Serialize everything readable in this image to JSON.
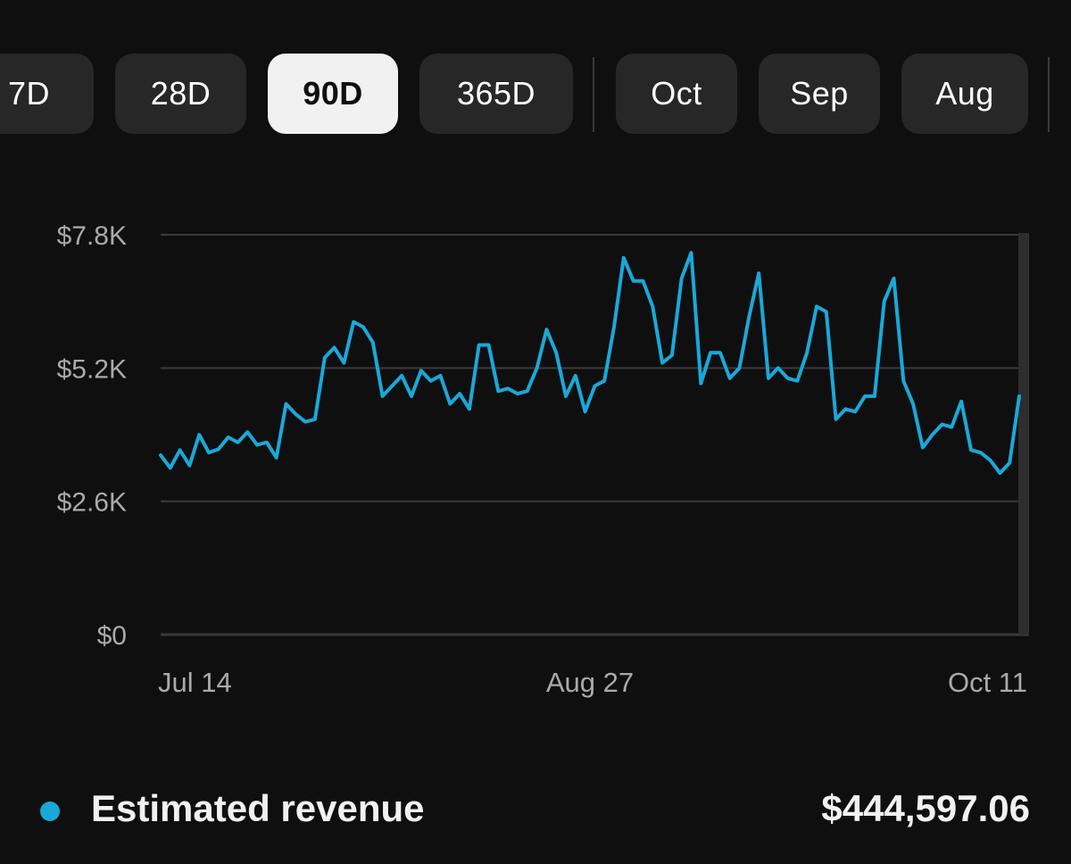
{
  "filters": {
    "chips": [
      {
        "label": "7D",
        "active": false
      },
      {
        "label": "28D",
        "active": false
      },
      {
        "label": "90D",
        "active": true
      },
      {
        "label": "365D",
        "active": false
      },
      {
        "label": "Oct",
        "active": false
      },
      {
        "label": "Sep",
        "active": false
      },
      {
        "label": "Aug",
        "active": false
      }
    ]
  },
  "legend": {
    "label": "Estimated revenue",
    "total": "$444,597.06"
  },
  "colors": {
    "line": "#1aa8d8",
    "background": "#0f0f0f",
    "grid": "#3a3a3a",
    "tick_text": "#aaaaaa"
  },
  "chart_data": {
    "type": "line",
    "title": "",
    "xlabel": "",
    "ylabel": "",
    "ylim": [
      0,
      7800
    ],
    "y_ticks": [
      {
        "value": 0,
        "label": "$0"
      },
      {
        "value": 2600,
        "label": "$2.6K"
      },
      {
        "value": 5200,
        "label": "$5.2K"
      },
      {
        "value": 7800,
        "label": "$7.8K"
      }
    ],
    "x_ticks": [
      {
        "index": 0,
        "label": "Jul 14"
      },
      {
        "index": 44,
        "label": "Aug 27"
      },
      {
        "index": 89,
        "label": "Oct 11"
      }
    ],
    "series": [
      {
        "name": "Estimated revenue",
        "values": [
          3500,
          3250,
          3600,
          3300,
          3900,
          3550,
          3620,
          3850,
          3750,
          3950,
          3700,
          3750,
          3450,
          4500,
          4300,
          4150,
          4200,
          5400,
          5600,
          5300,
          6100,
          6000,
          5700,
          4650,
          4850,
          5050,
          4650,
          5150,
          4950,
          5050,
          4500,
          4700,
          4400,
          5650,
          5650,
          4750,
          4800,
          4700,
          4750,
          5200,
          5950,
          5500,
          4650,
          5050,
          4350,
          4850,
          4950,
          6000,
          7350,
          6900,
          6900,
          6400,
          5300,
          5450,
          6950,
          7450,
          4900,
          5500,
          5500,
          5000,
          5200,
          6200,
          7050,
          5000,
          5200,
          5000,
          4950,
          5500,
          6400,
          6300,
          4200,
          4400,
          4350,
          4650,
          4650,
          6500,
          6950,
          4950,
          4500,
          3650,
          3900,
          4100,
          4050,
          4550,
          3600,
          3550,
          3400,
          3150,
          3350,
          4650
        ]
      }
    ]
  }
}
